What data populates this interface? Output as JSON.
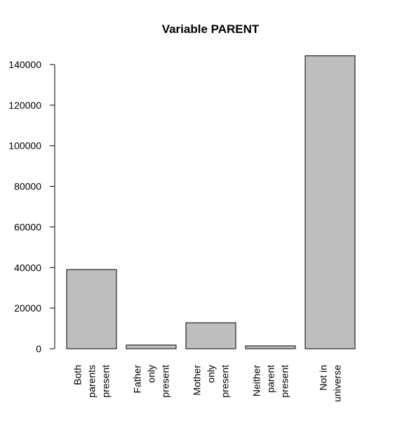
{
  "chart_data": {
    "type": "bar",
    "title": "Variable PARENT",
    "xlabel": "",
    "ylabel": "",
    "categories": [
      [
        "Both",
        "parents",
        "present"
      ],
      [
        "Father",
        "only",
        "present"
      ],
      [
        "Mother",
        "only",
        "present"
      ],
      [
        "Neither",
        "parent",
        "present"
      ],
      [
        "Not in",
        "universe"
      ]
    ],
    "values": [
      39000,
      1800,
      12800,
      1400,
      144300
    ],
    "ylim": [
      0,
      140000
    ],
    "yticks": [
      0,
      20000,
      40000,
      60000,
      80000,
      100000,
      120000,
      140000
    ],
    "bar_color": "#bebebe",
    "grid": false
  }
}
